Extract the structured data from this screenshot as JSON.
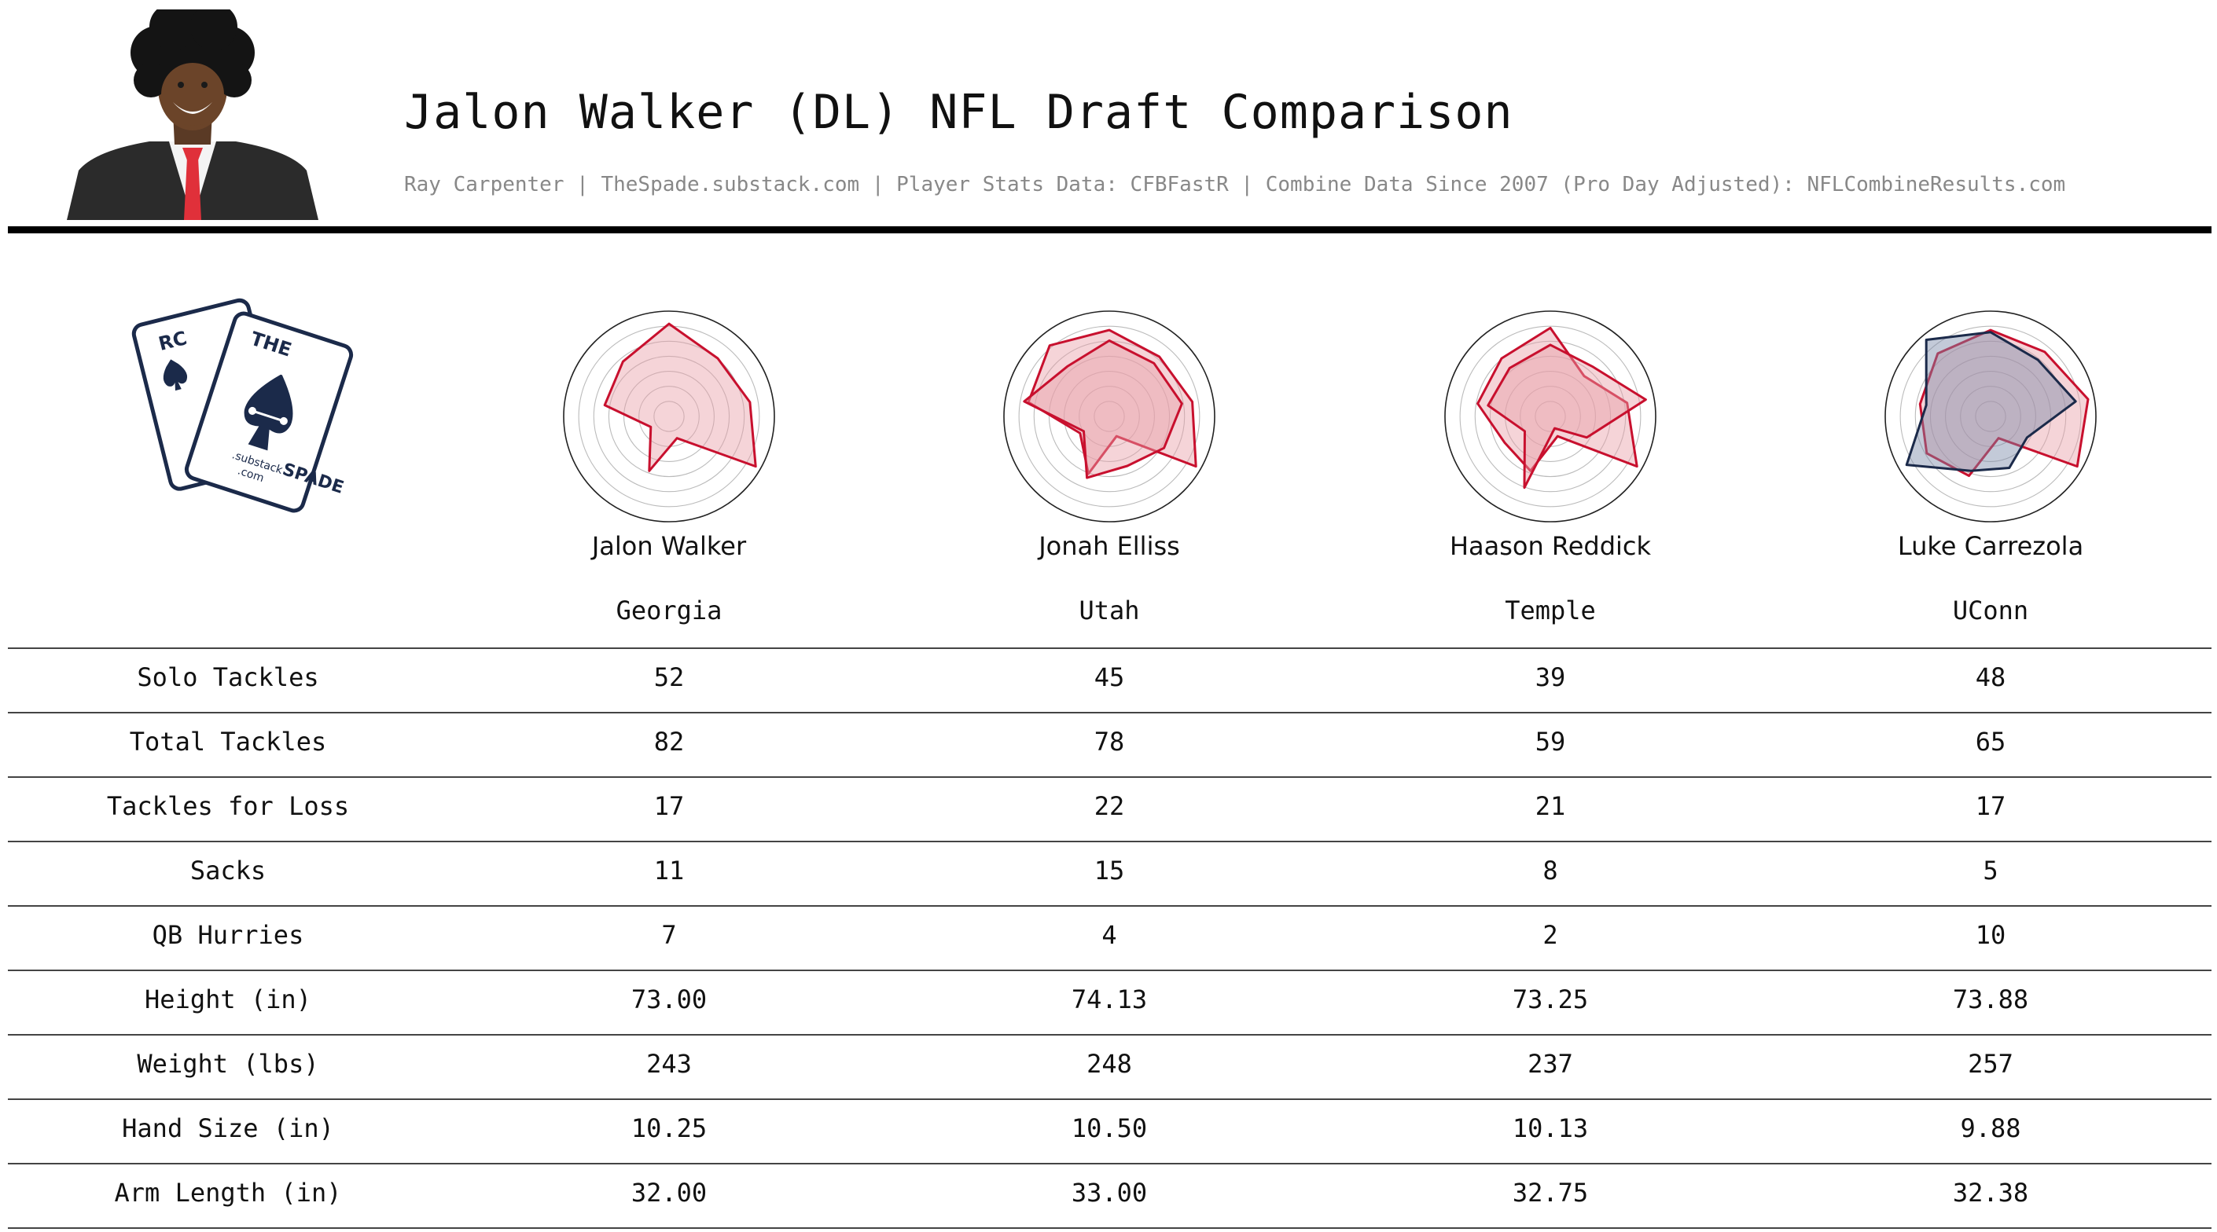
{
  "header": {
    "title": "Jalon Walker (DL) NFL Draft Comparison",
    "subtitle": "Ray Carpenter | TheSpade.substack.com | Player Stats Data: CFBFastR | Combine Data Since 2007 (Pro Day Adjusted): NFLCombineResults.com"
  },
  "logo": {
    "letters_left": "RC",
    "letters_top": "THE",
    "letters_right": "SPADE",
    "sub1": ".substack",
    "sub2": ".com"
  },
  "colors": {
    "accent": "#c8102e",
    "fill": "#e8a0a8",
    "navy": "#1b2a4a",
    "rule": "#000000"
  },
  "chart_data": {
    "type": "table",
    "players": [
      {
        "name": "Jalon Walker",
        "school": "Georgia"
      },
      {
        "name": "Jonah Elliss",
        "school": "Utah"
      },
      {
        "name": "Haason Reddick",
        "school": "Temple"
      },
      {
        "name": "Luke Carrezola",
        "school": "UConn"
      }
    ],
    "rows": [
      {
        "label": "Solo Tackles",
        "values": [
          "52",
          "45",
          "39",
          "48"
        ]
      },
      {
        "label": "Total Tackles",
        "values": [
          "82",
          "78",
          "59",
          "65"
        ]
      },
      {
        "label": "Tackles for Loss",
        "values": [
          "17",
          "22",
          "21",
          "17"
        ]
      },
      {
        "label": "Sacks",
        "values": [
          "11",
          "15",
          "8",
          "5"
        ]
      },
      {
        "label": "QB Hurries",
        "values": [
          "7",
          "4",
          "2",
          "10"
        ]
      },
      {
        "label": "Height (in)",
        "values": [
          "73.00",
          "74.13",
          "73.25",
          "73.88"
        ]
      },
      {
        "label": "Weight (lbs)",
        "values": [
          "243",
          "248",
          "237",
          "257"
        ]
      },
      {
        "label": "Hand Size (in)",
        "values": [
          "10.25",
          "10.50",
          "10.13",
          "9.88"
        ]
      },
      {
        "label": "Arm Length (in)",
        "values": [
          "32.00",
          "33.00",
          "32.75",
          "32.38"
        ]
      }
    ],
    "radars": [
      {
        "series": [
          {
            "values": [
              0.88,
              0.72,
              0.78,
              0.95,
              0.22,
              0.55,
              0.2,
              0.62,
              0.68
            ]
          }
        ]
      },
      {
        "series": [
          {
            "values": [
              0.82,
              0.74,
              0.8,
              0.95,
              0.2,
              0.58,
              0.32,
              0.78,
              0.88
            ]
          },
          {
            "values": [
              0.72,
              0.66,
              0.7,
              0.6,
              0.5,
              0.62,
              0.28,
              0.82,
              0.62
            ]
          }
        ]
      },
      {
        "series": [
          {
            "values": [
              0.84,
              0.5,
              0.74,
              0.95,
              0.2,
              0.55,
              0.5,
              0.7,
              0.72
            ]
          },
          {
            "values": [
              0.68,
              0.62,
              0.92,
              0.4,
              0.12,
              0.72,
              0.28,
              0.6,
              0.6
            ]
          }
        ]
      },
      {
        "series": [
          {
            "values": [
              0.82,
              0.8,
              0.94,
              0.95,
              0.22,
              0.6,
              0.7,
              0.68,
              0.78
            ]
          },
          {
            "values": [
              0.8,
              0.7,
              0.82,
              0.4,
              0.52,
              0.55,
              0.92,
              0.62,
              0.95
            ]
          }
        ]
      }
    ]
  }
}
